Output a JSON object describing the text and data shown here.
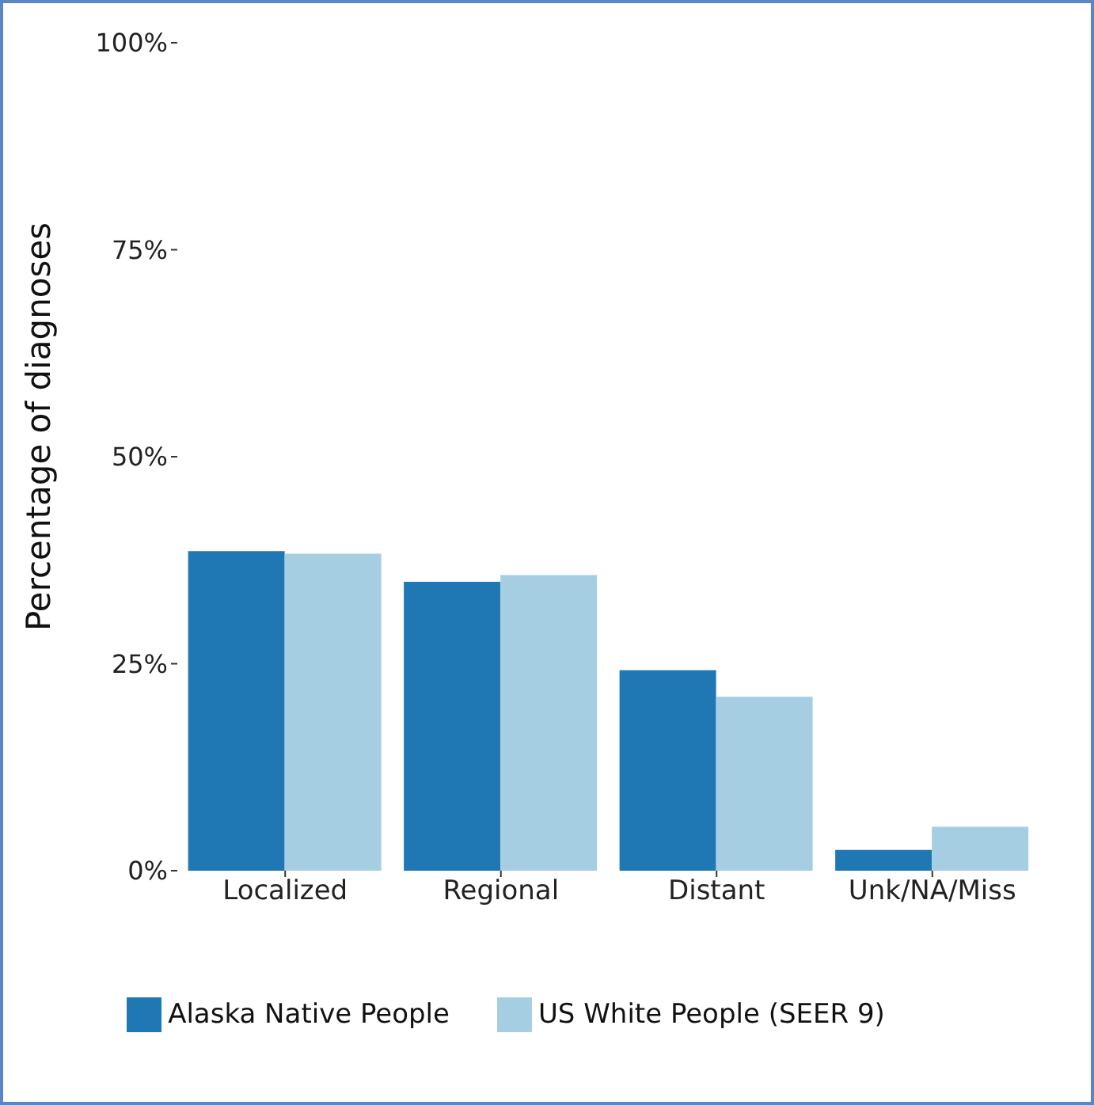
{
  "chart_data": {
    "type": "bar",
    "ylabel": "Percentage of diagnoses",
    "categories": [
      "Localized",
      "Regional",
      "Distant",
      "Unk/NA/Miss"
    ],
    "series": [
      {
        "name": "Alaska Native People",
        "color": "#1f78b4",
        "values": [
          38.6,
          34.9,
          24.2,
          2.5
        ]
      },
      {
        "name": "US White People (SEER 9)",
        "color": "#a6cee3",
        "values": [
          38.3,
          35.7,
          21.0,
          5.3
        ]
      }
    ],
    "ylim": [
      0,
      100
    ],
    "yticks": [
      {
        "value": 0,
        "label": "0%"
      },
      {
        "value": 25,
        "label": "25%"
      },
      {
        "value": 50,
        "label": "50%"
      },
      {
        "value": 75,
        "label": "75%"
      },
      {
        "value": 100,
        "label": "100%"
      }
    ],
    "grid": false,
    "legend": "bottom"
  }
}
